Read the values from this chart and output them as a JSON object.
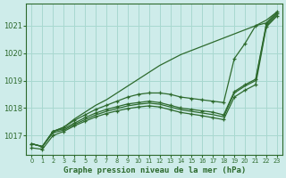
{
  "title": "Graphe pression niveau de la mer (hPa)",
  "background_color": "#ceecea",
  "line_color": "#2d6a2d",
  "grid_color": "#a8d8d0",
  "xlim": [
    -0.5,
    23.5
  ],
  "ylim": [
    1016.3,
    1021.8
  ],
  "yticks": [
    1017,
    1018,
    1019,
    1020,
    1021
  ],
  "xticks": [
    0,
    1,
    2,
    3,
    4,
    5,
    6,
    7,
    8,
    9,
    10,
    11,
    12,
    13,
    14,
    15,
    16,
    17,
    18,
    19,
    20,
    21,
    22,
    23
  ],
  "lines": [
    {
      "x": [
        0,
        1,
        2,
        3,
        4,
        5,
        6,
        7,
        8,
        9,
        10,
        11,
        12,
        13,
        14,
        15,
        16,
        17,
        18,
        19,
        20,
        21,
        22,
        23
      ],
      "y": [
        1016.7,
        1016.6,
        1017.15,
        1017.3,
        1017.6,
        1017.85,
        1018.1,
        1018.3,
        1018.55,
        1018.8,
        1019.05,
        1019.3,
        1019.55,
        1019.75,
        1019.95,
        1020.1,
        1020.25,
        1020.4,
        1020.55,
        1020.7,
        1020.85,
        1021.0,
        1021.2,
        1021.5
      ],
      "marker": false
    },
    {
      "x": [
        0,
        1,
        2,
        3,
        4,
        5,
        6,
        7,
        8,
        9,
        10,
        11,
        12,
        13,
        14,
        15,
        16,
        17,
        18,
        19,
        20,
        21,
        22,
        23
      ],
      "y": [
        1016.7,
        1016.6,
        1017.15,
        1017.3,
        1017.55,
        1017.75,
        1017.95,
        1018.1,
        1018.25,
        1018.4,
        1018.5,
        1018.55,
        1018.55,
        1018.5,
        1018.4,
        1018.35,
        1018.3,
        1018.25,
        1018.2,
        1019.8,
        1020.35,
        1021.0,
        1021.1,
        1021.5
      ],
      "marker": true
    },
    {
      "x": [
        0,
        1,
        2,
        3,
        4,
        5,
        6,
        7,
        8,
        9,
        10,
        11,
        12,
        13,
        14,
        15,
        16,
        17,
        18,
        19,
        20,
        21,
        22,
        23
      ],
      "y": [
        1016.7,
        1016.6,
        1017.15,
        1017.25,
        1017.45,
        1017.65,
        1017.82,
        1017.95,
        1018.05,
        1018.15,
        1018.2,
        1018.25,
        1018.2,
        1018.1,
        1018.0,
        1017.95,
        1017.9,
        1017.85,
        1017.75,
        1018.6,
        1018.85,
        1019.05,
        1021.05,
        1021.45
      ],
      "marker": true
    },
    {
      "x": [
        0,
        1,
        2,
        3,
        4,
        5,
        6,
        7,
        8,
        9,
        10,
        11,
        12,
        13,
        14,
        15,
        16,
        17,
        18,
        19,
        20,
        21,
        22,
        23
      ],
      "y": [
        1016.7,
        1016.6,
        1017.1,
        1017.2,
        1017.4,
        1017.58,
        1017.75,
        1017.88,
        1017.98,
        1018.08,
        1018.14,
        1018.18,
        1018.14,
        1018.04,
        1017.94,
        1017.88,
        1017.82,
        1017.76,
        1017.68,
        1018.55,
        1018.8,
        1019.0,
        1021.0,
        1021.4
      ],
      "marker": false
    },
    {
      "x": [
        0,
        1,
        2,
        3,
        4,
        5,
        6,
        7,
        8,
        9,
        10,
        11,
        12,
        13,
        14,
        15,
        16,
        17,
        18,
        19,
        20,
        21,
        22,
        23
      ],
      "y": [
        1016.55,
        1016.5,
        1017.0,
        1017.15,
        1017.35,
        1017.52,
        1017.68,
        1017.8,
        1017.9,
        1017.98,
        1018.04,
        1018.08,
        1018.04,
        1017.94,
        1017.84,
        1017.78,
        1017.72,
        1017.65,
        1017.58,
        1018.4,
        1018.65,
        1018.85,
        1020.95,
        1021.35
      ],
      "marker": true
    }
  ]
}
